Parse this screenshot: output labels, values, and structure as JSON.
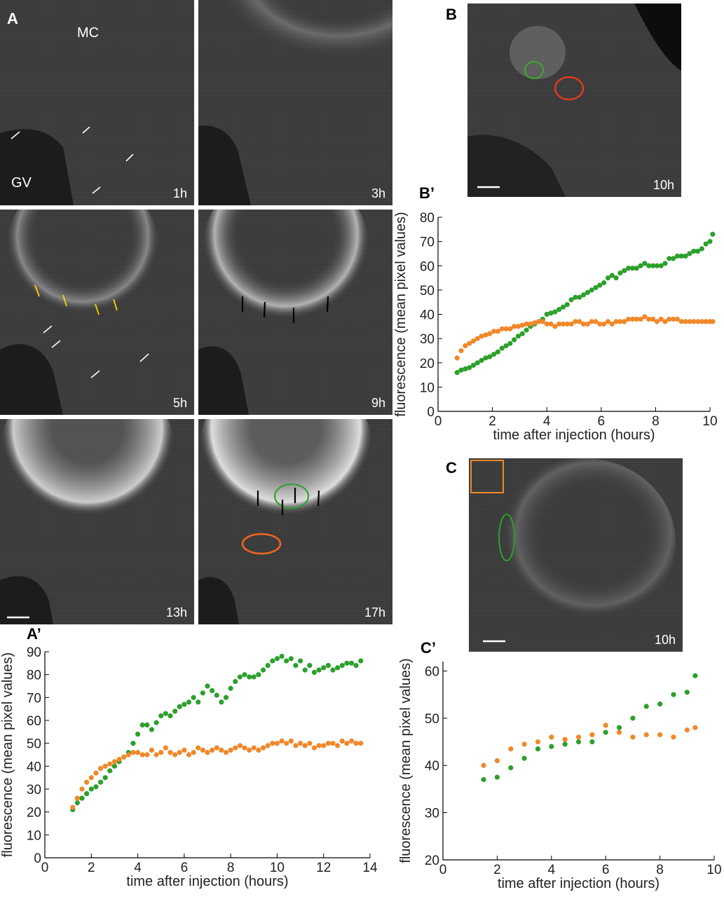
{
  "panels": {
    "A": {
      "letter": "A",
      "labels": {
        "mc": "MC",
        "gv": "GV"
      },
      "frames": [
        "1h",
        "3h",
        "5h",
        "9h",
        "13h",
        "17h"
      ]
    },
    "B": {
      "letter": "B",
      "frame": "10h"
    },
    "C": {
      "letter": "C",
      "frame": "10h"
    },
    "A_prime": {
      "letter": "A’"
    },
    "B_prime": {
      "letter": "B’"
    },
    "C_prime": {
      "letter": "C’"
    }
  },
  "colors": {
    "green": "#2ca02c",
    "orange": "#f0882a",
    "red_roi": "#e03a1e"
  },
  "chart_data": [
    {
      "id": "A_prime",
      "type": "scatter",
      "xlabel": "time after injection (hours)",
      "ylabel": "fluorescence (mean pixel values)",
      "xlim": [
        0,
        14
      ],
      "ylim": [
        0,
        90
      ],
      "xticks": [
        0,
        2,
        4,
        6,
        8,
        10,
        12,
        14
      ],
      "yticks": [
        0,
        10,
        20,
        30,
        40,
        50,
        60,
        70,
        80,
        90
      ],
      "series": [
        {
          "color": "green",
          "x": [
            1.2,
            1.4,
            1.6,
            1.8,
            2.0,
            2.2,
            2.4,
            2.6,
            2.8,
            3.0,
            3.2,
            3.4,
            3.6,
            3.8,
            4.0,
            4.2,
            4.4,
            4.6,
            4.8,
            5.0,
            5.2,
            5.4,
            5.6,
            5.8,
            6.0,
            6.2,
            6.4,
            6.6,
            6.8,
            7.0,
            7.2,
            7.4,
            7.6,
            7.8,
            8.0,
            8.2,
            8.4,
            8.6,
            8.8,
            9.0,
            9.2,
            9.4,
            9.6,
            9.8,
            10.0,
            10.2,
            10.4,
            10.6,
            10.8,
            11.0,
            11.2,
            11.4,
            11.6,
            11.8,
            12.0,
            12.2,
            12.4,
            12.6,
            12.8,
            13.0,
            13.2,
            13.4,
            13.6
          ],
          "y": [
            21,
            24,
            26,
            28,
            30,
            31,
            33,
            35,
            38,
            40,
            42,
            44,
            46,
            50,
            54,
            58,
            58,
            56,
            59,
            62,
            63,
            62,
            64,
            66,
            67,
            68,
            70,
            68,
            72,
            75,
            73,
            71,
            68,
            70,
            74,
            77,
            79,
            80,
            79,
            79,
            80,
            82,
            84,
            86,
            87,
            88,
            86,
            87,
            84,
            86,
            82,
            84,
            81,
            82,
            83,
            84,
            82,
            83,
            84,
            85,
            85,
            84,
            86
          ]
        },
        {
          "color": "orange",
          "x": [
            1.2,
            1.4,
            1.6,
            1.8,
            2.0,
            2.2,
            2.4,
            2.6,
            2.8,
            3.0,
            3.2,
            3.4,
            3.6,
            3.8,
            4.0,
            4.2,
            4.4,
            4.6,
            4.8,
            5.0,
            5.2,
            5.4,
            5.6,
            5.8,
            6.0,
            6.2,
            6.4,
            6.6,
            6.8,
            7.0,
            7.2,
            7.4,
            7.6,
            7.8,
            8.0,
            8.2,
            8.4,
            8.6,
            8.8,
            9.0,
            9.2,
            9.4,
            9.6,
            9.8,
            10.0,
            10.2,
            10.4,
            10.6,
            10.8,
            11.0,
            11.2,
            11.4,
            11.6,
            11.8,
            12.0,
            12.2,
            12.4,
            12.6,
            12.8,
            13.0,
            13.2,
            13.4,
            13.6
          ],
          "y": [
            22,
            26,
            30,
            33,
            35,
            37,
            39,
            40,
            41,
            42,
            43,
            44,
            45,
            46,
            46,
            45,
            45,
            47,
            45,
            46,
            48,
            46,
            45,
            46,
            47,
            45,
            46,
            48,
            47,
            46,
            47,
            48,
            47,
            46,
            47,
            48,
            49,
            48,
            47,
            48,
            47,
            48,
            49,
            50,
            50,
            51,
            50,
            51,
            49,
            50,
            49,
            50,
            48,
            49,
            49,
            50,
            50,
            49,
            51,
            50,
            51,
            50,
            50
          ]
        }
      ]
    },
    {
      "id": "B_prime",
      "type": "scatter",
      "xlabel": "time after injection (hours)",
      "ylabel": "fluorescence (mean pixel values)",
      "xlim": [
        0,
        10
      ],
      "ylim": [
        0,
        80
      ],
      "xticks": [
        0,
        2,
        4,
        6,
        8,
        10
      ],
      "yticks": [
        0,
        10,
        20,
        30,
        40,
        50,
        60,
        70,
        80
      ],
      "series": [
        {
          "color": "green",
          "x": [
            0.7,
            0.85,
            1.0,
            1.15,
            1.3,
            1.45,
            1.6,
            1.75,
            1.9,
            2.05,
            2.2,
            2.35,
            2.5,
            2.65,
            2.8,
            2.95,
            3.1,
            3.25,
            3.4,
            3.55,
            3.7,
            3.85,
            4.0,
            4.15,
            4.3,
            4.45,
            4.6,
            4.75,
            4.9,
            5.05,
            5.2,
            5.35,
            5.5,
            5.65,
            5.8,
            5.95,
            6.1,
            6.25,
            6.4,
            6.55,
            6.7,
            6.85,
            7.0,
            7.15,
            7.3,
            7.45,
            7.6,
            7.75,
            7.9,
            8.05,
            8.2,
            8.35,
            8.5,
            8.65,
            8.8,
            8.95,
            9.1,
            9.25,
            9.4,
            9.55,
            9.7,
            9.85,
            10.0,
            10.1
          ],
          "y": [
            16,
            17,
            17.5,
            18,
            19,
            20,
            21,
            22,
            22.5,
            23.5,
            24.5,
            26,
            27,
            28,
            29.5,
            31,
            32,
            33.5,
            35,
            36,
            37,
            38,
            40,
            40.5,
            41,
            42,
            43,
            44,
            46,
            47,
            47,
            48,
            49,
            50,
            51,
            52,
            53,
            55,
            56,
            55,
            57,
            58,
            59,
            59,
            59,
            60,
            61,
            60,
            60,
            60,
            60,
            61,
            63,
            63,
            64,
            64,
            64,
            65,
            66,
            66,
            67,
            69,
            70,
            73
          ]
        },
        {
          "color": "orange",
          "x": [
            0.7,
            0.85,
            1.0,
            1.15,
            1.3,
            1.45,
            1.6,
            1.75,
            1.9,
            2.05,
            2.2,
            2.35,
            2.5,
            2.65,
            2.8,
            2.95,
            3.1,
            3.25,
            3.4,
            3.55,
            3.7,
            3.85,
            4.0,
            4.15,
            4.3,
            4.45,
            4.6,
            4.75,
            4.9,
            5.05,
            5.2,
            5.35,
            5.5,
            5.65,
            5.8,
            5.95,
            6.1,
            6.25,
            6.4,
            6.55,
            6.7,
            6.85,
            7.0,
            7.15,
            7.3,
            7.45,
            7.6,
            7.75,
            7.9,
            8.05,
            8.2,
            8.35,
            8.5,
            8.65,
            8.8,
            8.95,
            9.1,
            9.25,
            9.4,
            9.55,
            9.7,
            9.85,
            10.0,
            10.1
          ],
          "y": [
            22,
            25,
            27,
            28,
            29,
            30,
            31,
            31.5,
            32,
            33,
            33,
            34,
            34,
            34,
            35,
            35,
            35.5,
            36,
            36,
            36.5,
            37,
            37,
            36,
            36,
            35,
            36,
            36,
            36,
            36,
            37,
            37,
            36,
            36,
            37,
            37,
            36,
            36,
            37,
            36,
            37,
            37,
            37,
            38,
            38,
            38,
            38,
            39,
            38,
            38,
            37,
            38,
            37,
            38,
            38,
            38,
            37,
            37,
            37,
            37,
            37,
            37,
            37,
            37,
            37
          ]
        }
      ]
    },
    {
      "id": "C_prime",
      "type": "scatter",
      "xlabel": "time after injection (hours)",
      "ylabel": "fluorescence (mean pixel values)",
      "xlim": [
        0,
        10
      ],
      "ylim": [
        20,
        62
      ],
      "xticks": [
        0,
        2,
        4,
        6,
        8,
        10
      ],
      "yticks": [
        20,
        30,
        40,
        50,
        60
      ],
      "series": [
        {
          "color": "green",
          "x": [
            1.5,
            2.0,
            2.5,
            3.0,
            3.5,
            4.0,
            4.5,
            5.0,
            5.5,
            6.0,
            6.5,
            7.0,
            7.5,
            8.0,
            8.5,
            9.0,
            9.3
          ],
          "y": [
            37,
            37.5,
            39.5,
            41.5,
            43.5,
            44,
            44.5,
            45,
            45,
            47,
            48,
            50,
            52.5,
            53,
            55,
            55.5,
            59
          ]
        },
        {
          "color": "orange",
          "x": [
            1.5,
            2.0,
            2.5,
            3.0,
            3.5,
            4.0,
            4.5,
            5.0,
            5.5,
            6.0,
            6.5,
            7.0,
            7.5,
            8.0,
            8.5,
            9.0,
            9.3
          ],
          "y": [
            40,
            41,
            43.5,
            44.5,
            45,
            46,
            45.5,
            46,
            46.5,
            48.5,
            47,
            46,
            46.5,
            46.5,
            46,
            47.5,
            48
          ]
        }
      ]
    }
  ]
}
